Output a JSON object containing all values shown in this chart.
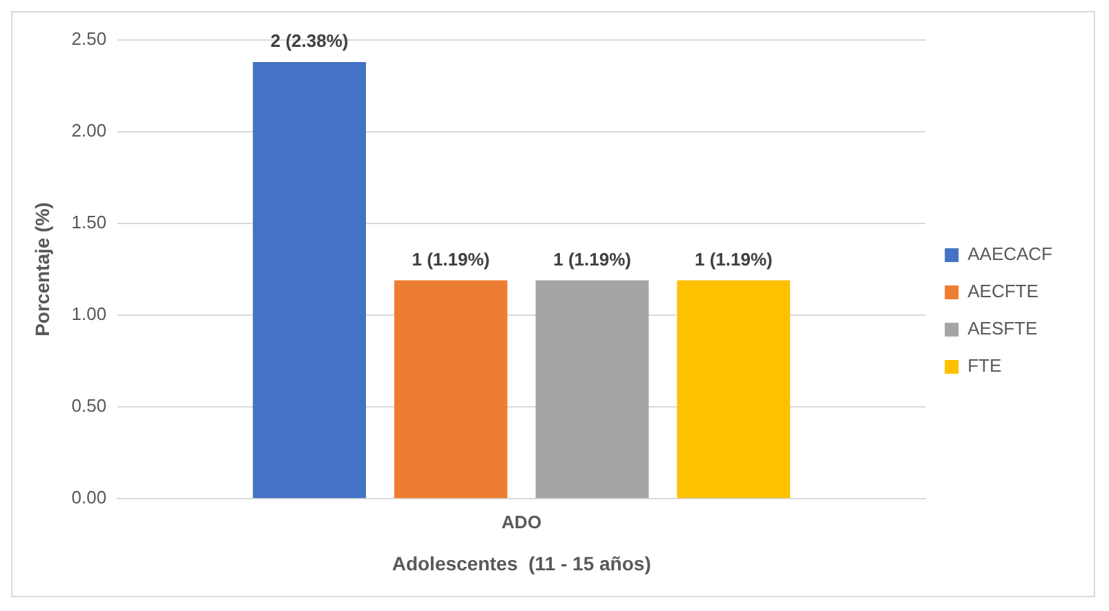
{
  "chart_data": {
    "type": "bar",
    "xlabel": "Adolescentes  (11 - 15 años)",
    "ylabel": "Porcentaje (%)",
    "categories": [
      "ADO"
    ],
    "series": [
      {
        "name": "AAECACF",
        "color": "#4472c4",
        "values": [
          2.38
        ],
        "value_labels": [
          "2 (2.38%)"
        ]
      },
      {
        "name": "AECFTE",
        "color": "#ed7d31",
        "values": [
          1.19
        ],
        "value_labels": [
          "1 (1.19%)"
        ]
      },
      {
        "name": "AESFTE",
        "color": "#a5a5a5",
        "values": [
          1.19
        ],
        "value_labels": [
          "1 (1.19%)"
        ]
      },
      {
        "name": "FTE",
        "color": "#ffc000",
        "values": [
          1.19
        ],
        "value_labels": [
          "1 (1.19%)"
        ]
      }
    ],
    "ylim": [
      0,
      2.5
    ],
    "yticks": [
      {
        "value": 0,
        "label": "0.00"
      },
      {
        "value": 0.5,
        "label": "0.50"
      },
      {
        "value": 1,
        "label": "1.00"
      },
      {
        "value": 1.5,
        "label": "1.50"
      },
      {
        "value": 2,
        "label": "2.00"
      },
      {
        "value": 2.5,
        "label": "2.50"
      }
    ],
    "grid": "y",
    "legend": "right"
  }
}
